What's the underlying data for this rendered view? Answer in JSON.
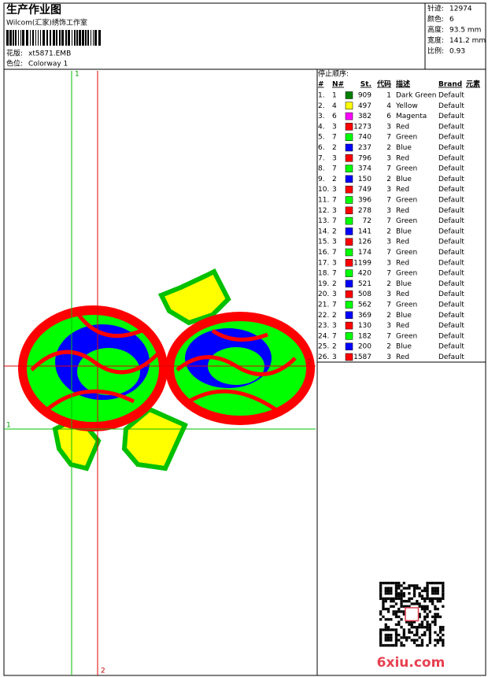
{
  "header": {
    "title": "生产作业图",
    "studio": "Wilcom(汇家)绣饰工作室",
    "design_label": "花版:",
    "design_value": "xt5871.EMB",
    "colorway_label": "色位:",
    "colorway_value": "Colorway 1"
  },
  "info": [
    {
      "label": "针迹:",
      "value": "12974"
    },
    {
      "label": "颜色:",
      "value": "6"
    },
    {
      "label": "高度:",
      "value": "93.5 mm"
    },
    {
      "label": "宽度:",
      "value": "141.2 mm"
    },
    {
      "label": "比例:",
      "value": "0.93"
    }
  ],
  "guides": {
    "top": "1",
    "bottom": "2",
    "right": "2",
    "left": "1"
  },
  "table": {
    "caption": "停止顺序:",
    "columns": [
      "#",
      "N#",
      "St.",
      "代码",
      "描述",
      "Brand",
      "元素"
    ],
    "rows": [
      {
        "no": "1.",
        "n": "1",
        "color": "#008000",
        "st": "909",
        "code": "1",
        "desc": "Dark Green",
        "brand": "Default"
      },
      {
        "no": "2.",
        "n": "4",
        "color": "#ffff00",
        "st": "497",
        "code": "4",
        "desc": "Yellow",
        "brand": "Default"
      },
      {
        "no": "3.",
        "n": "6",
        "color": "#ff00ff",
        "st": "382",
        "code": "6",
        "desc": "Magenta",
        "brand": "Default"
      },
      {
        "no": "4.",
        "n": "3",
        "color": "#ff0000",
        "st": "1273",
        "code": "3",
        "desc": "Red",
        "brand": "Default"
      },
      {
        "no": "5.",
        "n": "7",
        "color": "#00ff00",
        "st": "740",
        "code": "7",
        "desc": "Green",
        "brand": "Default"
      },
      {
        "no": "6.",
        "n": "2",
        "color": "#0000ff",
        "st": "237",
        "code": "2",
        "desc": "Blue",
        "brand": "Default"
      },
      {
        "no": "7.",
        "n": "3",
        "color": "#ff0000",
        "st": "796",
        "code": "3",
        "desc": "Red",
        "brand": "Default"
      },
      {
        "no": "8.",
        "n": "7",
        "color": "#00ff00",
        "st": "374",
        "code": "7",
        "desc": "Green",
        "brand": "Default"
      },
      {
        "no": "9.",
        "n": "2",
        "color": "#0000ff",
        "st": "150",
        "code": "2",
        "desc": "Blue",
        "brand": "Default"
      },
      {
        "no": "10.",
        "n": "3",
        "color": "#ff0000",
        "st": "749",
        "code": "3",
        "desc": "Red",
        "brand": "Default"
      },
      {
        "no": "11.",
        "n": "7",
        "color": "#00ff00",
        "st": "396",
        "code": "7",
        "desc": "Green",
        "brand": "Default"
      },
      {
        "no": "12.",
        "n": "3",
        "color": "#ff0000",
        "st": "278",
        "code": "3",
        "desc": "Red",
        "brand": "Default"
      },
      {
        "no": "13.",
        "n": "7",
        "color": "#00ff00",
        "st": "72",
        "code": "7",
        "desc": "Green",
        "brand": "Default"
      },
      {
        "no": "14.",
        "n": "2",
        "color": "#0000ff",
        "st": "141",
        "code": "2",
        "desc": "Blue",
        "brand": "Default"
      },
      {
        "no": "15.",
        "n": "3",
        "color": "#ff0000",
        "st": "126",
        "code": "3",
        "desc": "Red",
        "brand": "Default"
      },
      {
        "no": "16.",
        "n": "7",
        "color": "#00ff00",
        "st": "174",
        "code": "7",
        "desc": "Green",
        "brand": "Default"
      },
      {
        "no": "17.",
        "n": "3",
        "color": "#ff0000",
        "st": "1199",
        "code": "3",
        "desc": "Red",
        "brand": "Default"
      },
      {
        "no": "18.",
        "n": "7",
        "color": "#00ff00",
        "st": "420",
        "code": "7",
        "desc": "Green",
        "brand": "Default"
      },
      {
        "no": "19.",
        "n": "2",
        "color": "#0000ff",
        "st": "521",
        "code": "2",
        "desc": "Blue",
        "brand": "Default"
      },
      {
        "no": "20.",
        "n": "3",
        "color": "#ff0000",
        "st": "508",
        "code": "3",
        "desc": "Red",
        "brand": "Default"
      },
      {
        "no": "21.",
        "n": "7",
        "color": "#00ff00",
        "st": "562",
        "code": "7",
        "desc": "Green",
        "brand": "Default"
      },
      {
        "no": "22.",
        "n": "2",
        "color": "#0000ff",
        "st": "369",
        "code": "2",
        "desc": "Blue",
        "brand": "Default"
      },
      {
        "no": "23.",
        "n": "3",
        "color": "#ff0000",
        "st": "130",
        "code": "3",
        "desc": "Red",
        "brand": "Default"
      },
      {
        "no": "24.",
        "n": "7",
        "color": "#00ff00",
        "st": "182",
        "code": "7",
        "desc": "Green",
        "brand": "Default"
      },
      {
        "no": "25.",
        "n": "2",
        "color": "#0000ff",
        "st": "200",
        "code": "2",
        "desc": "Blue",
        "brand": "Default"
      },
      {
        "no": "26.",
        "n": "3",
        "color": "#ff0000",
        "st": "1587",
        "code": "3",
        "desc": "Red",
        "brand": "Default"
      }
    ]
  },
  "watermark": "6xiu.com"
}
